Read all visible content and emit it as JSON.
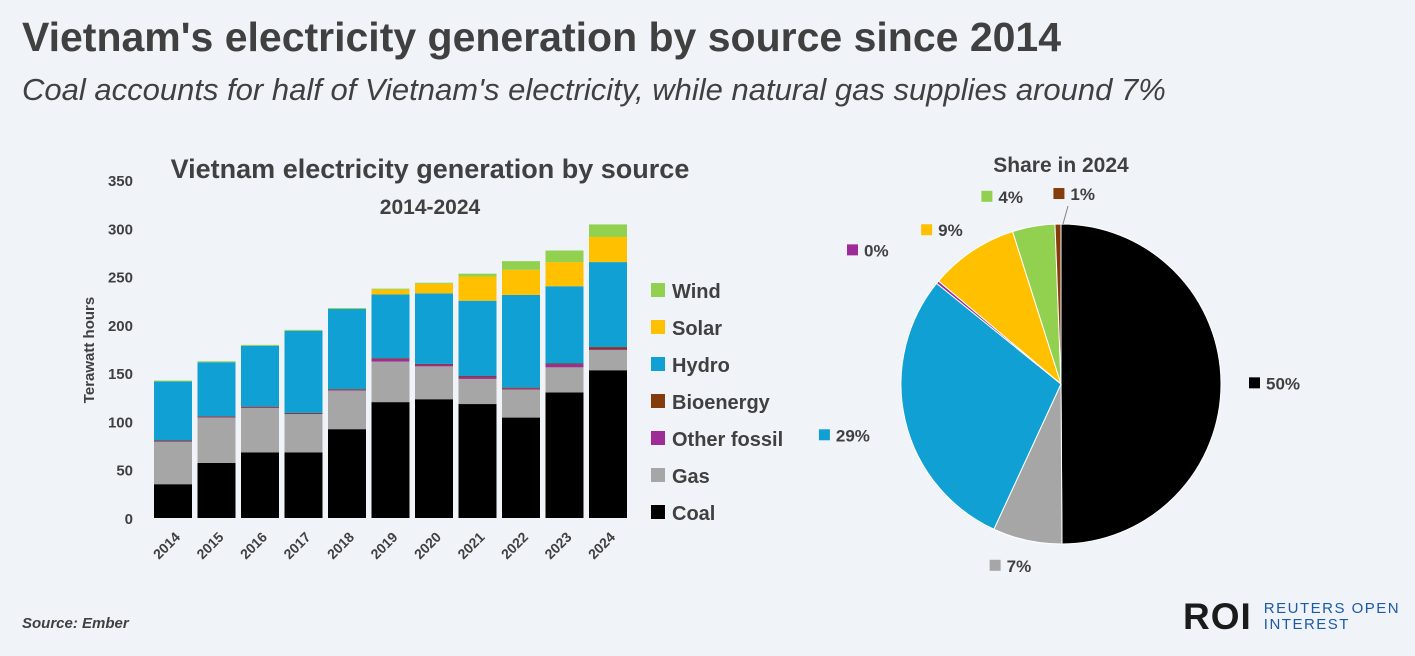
{
  "header": {
    "title": "Vietnam's electricity generation by source since 2014",
    "subtitle": "Coal accounts for half of Vietnam's electricity, while natural gas supplies around 7%"
  },
  "footer": {
    "source": "Source: Ember",
    "brand_mark": "ROI",
    "brand_line1": "REUTERS OPEN",
    "brand_line2": "INTEREST"
  },
  "chart_data": [
    {
      "type": "bar",
      "stacked": true,
      "title": "Vietnam electricity generation by source",
      "subtitle": "2014-2024",
      "ylabel": "Terawatt hours",
      "ylim": [
        0,
        350
      ],
      "yticks": [
        0,
        50,
        100,
        150,
        200,
        250,
        300,
        350
      ],
      "categories": [
        "2014",
        "2015",
        "2016",
        "2017",
        "2018",
        "2019",
        "2020",
        "2021",
        "2022",
        "2023",
        "2024"
      ],
      "legend_position": "right",
      "series": [
        {
          "name": "Coal",
          "color": "#000000",
          "values": [
            35,
            57,
            68,
            68,
            92,
            120,
            123,
            118,
            104,
            130,
            153
          ]
        },
        {
          "name": "Gas",
          "color": "#a6a6a6",
          "values": [
            44,
            47,
            46,
            40,
            40,
            42,
            34,
            26,
            29,
            26,
            21
          ]
        },
        {
          "name": "Other fossil",
          "color": "#9e2c97",
          "values": [
            1,
            1,
            1,
            0.5,
            1,
            3,
            2,
            2,
            1,
            3,
            1
          ]
        },
        {
          "name": "Bioenergy",
          "color": "#843c0c",
          "values": [
            0.3,
            0.3,
            0.3,
            0.3,
            0.4,
            0.5,
            0.6,
            1,
            1,
            1,
            2
          ]
        },
        {
          "name": "Hydro",
          "color": "#10a0d4",
          "values": [
            61,
            56,
            63,
            85,
            83,
            66,
            73,
            78,
            96,
            80,
            88
          ]
        },
        {
          "name": "Solar",
          "color": "#ffc000",
          "values": [
            0,
            0,
            0,
            0,
            0,
            5,
            10,
            25,
            26,
            25,
            26
          ]
        },
        {
          "name": "Wind",
          "color": "#92d050",
          "values": [
            1,
            1,
            1,
            1,
            1,
            1,
            1,
            3,
            9,
            12,
            13
          ]
        }
      ]
    },
    {
      "type": "pie",
      "title": "Share in 2024",
      "slices": [
        {
          "name": "Coal",
          "value": 50,
          "label": "50%",
          "color": "#000000"
        },
        {
          "name": "Gas",
          "value": 7,
          "label": "7%",
          "color": "#a6a6a6"
        },
        {
          "name": "Hydro",
          "value": 29,
          "label": "29%",
          "color": "#10a0d4"
        },
        {
          "name": "Other fossil",
          "value": 0.3,
          "label": "0%",
          "color": "#9e2c97"
        },
        {
          "name": "Solar",
          "value": 9,
          "label": "9%",
          "color": "#ffc000"
        },
        {
          "name": "Wind",
          "value": 4.3,
          "label": "4%",
          "color": "#92d050"
        },
        {
          "name": "Bioenergy",
          "value": 0.6,
          "label": "1%",
          "color": "#843c0c"
        }
      ]
    }
  ]
}
